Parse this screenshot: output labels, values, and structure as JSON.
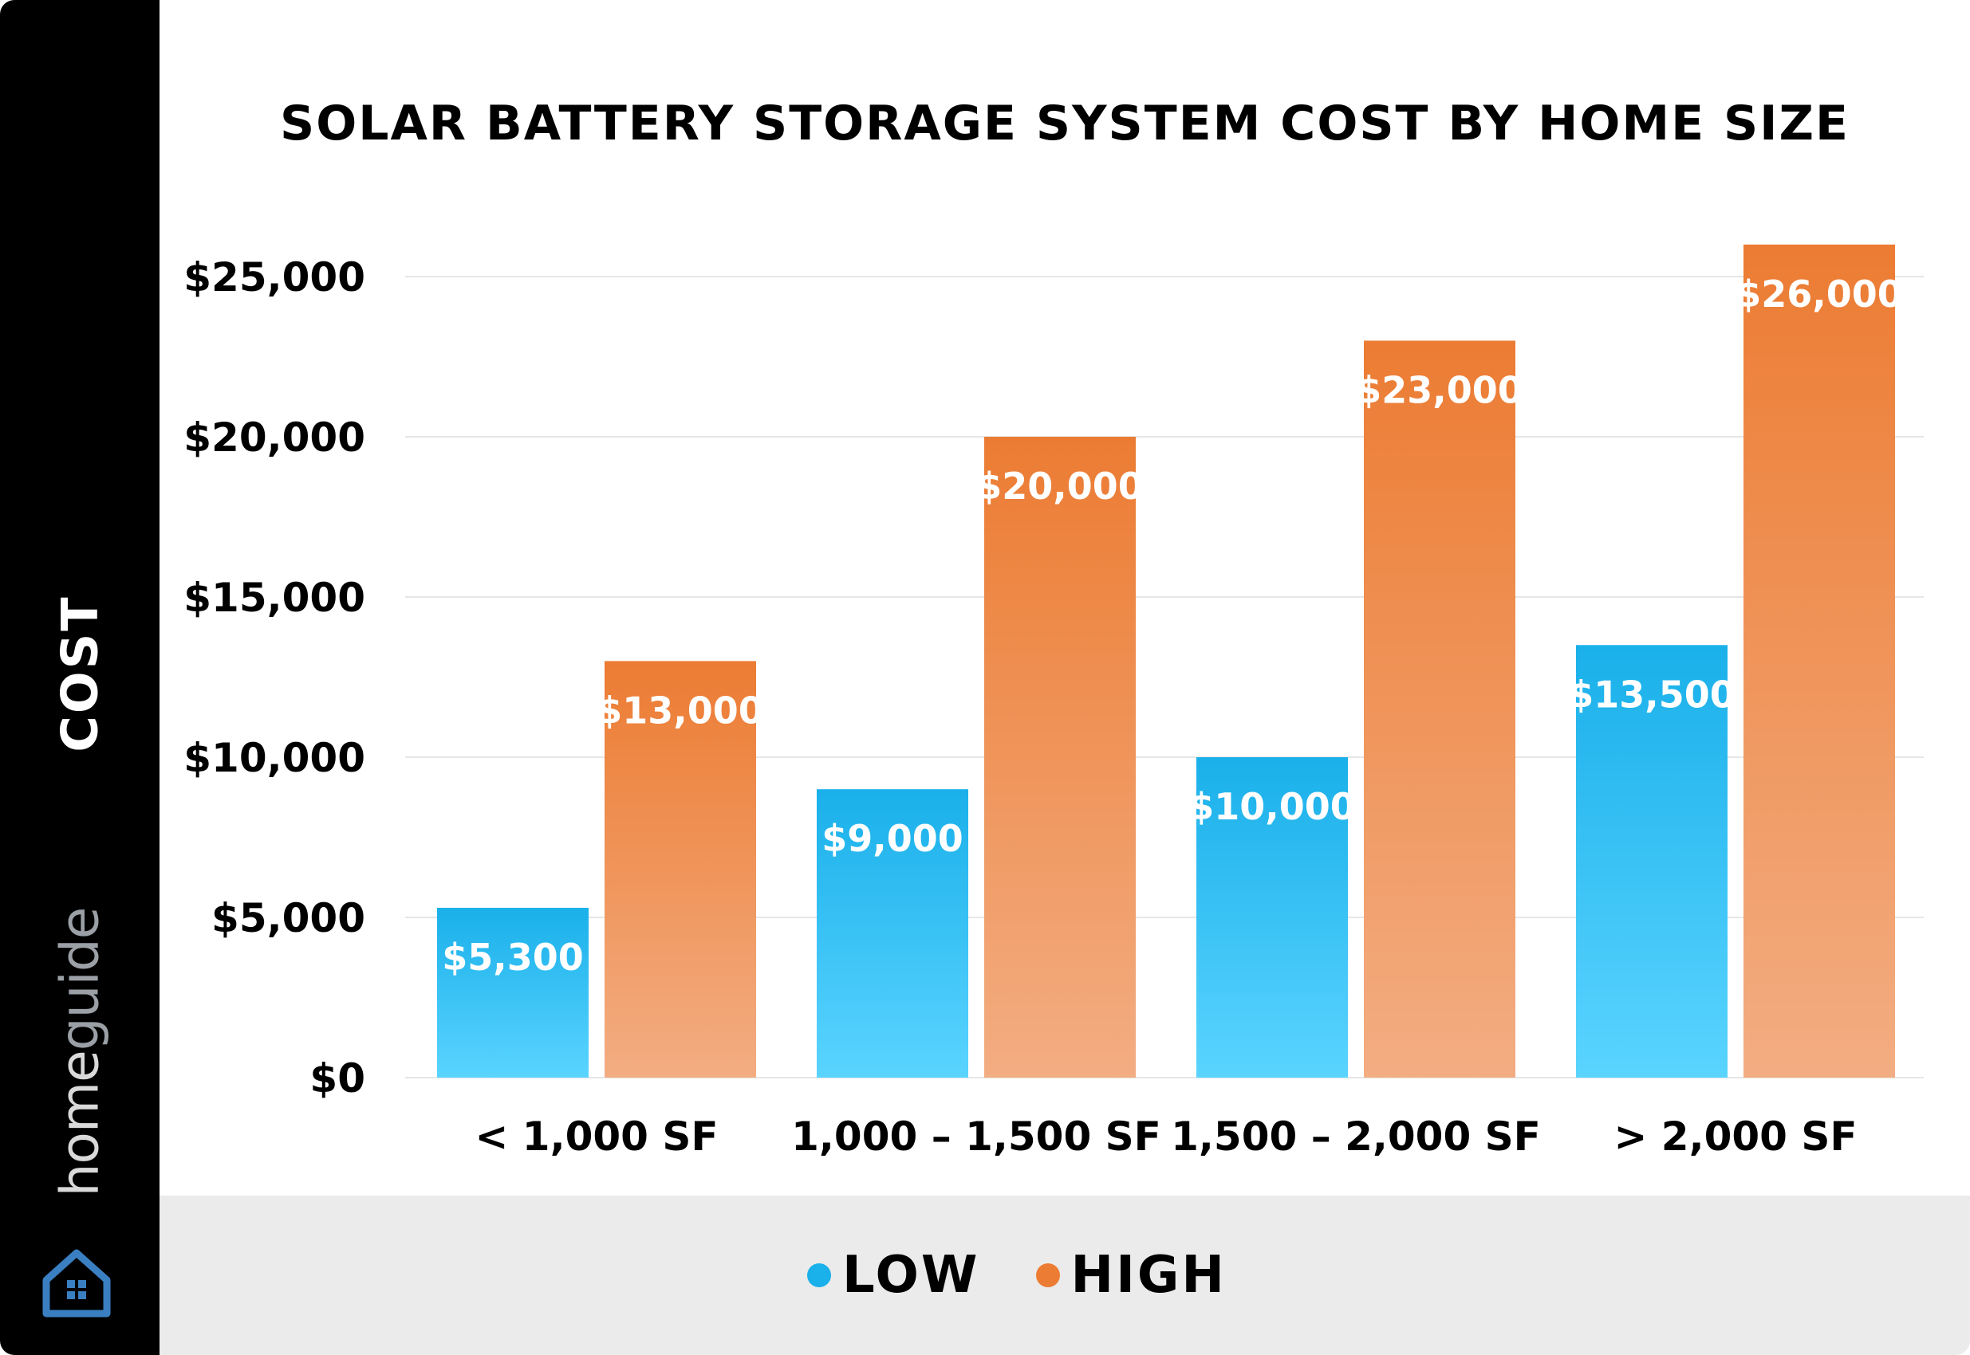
{
  "sidebar": {
    "axis_label": "COST",
    "brand": {
      "part1": "home",
      "part2": "guide",
      "logo_icon": "house-grid-icon"
    }
  },
  "colors": {
    "low_top": "#1ab0ea",
    "low_bottom": "#5ad4ff",
    "high_top": "#ec7c33",
    "high_bottom": "#f3ad82",
    "grid": "#e6e6e6",
    "sidebar": "#000000",
    "legend_band": "#ebebeb"
  },
  "chart_data": {
    "type": "bar",
    "title": "SOLAR BATTERY STORAGE SYSTEM COST BY HOME SIZE",
    "ylabel": "COST",
    "xlabel": "",
    "categories": [
      "< 1,000 SF",
      "1,000 – 1,500 SF",
      "1,500 – 2,000 SF",
      "> 2,000 SF"
    ],
    "series": [
      {
        "name": "LOW",
        "values": [
          5300,
          9000,
          10000,
          13500
        ],
        "labels": [
          "$5,300",
          "$9,000",
          "$10,000",
          "$13,500"
        ]
      },
      {
        "name": "HIGH",
        "values": [
          13000,
          20000,
          23000,
          26000
        ],
        "labels": [
          "$13,000",
          "$20,000",
          "$23,000",
          "$26,000"
        ]
      }
    ],
    "ylim": [
      0,
      26000
    ],
    "yticks": [
      0,
      5000,
      10000,
      15000,
      20000,
      25000
    ],
    "ytick_labels": [
      "$0",
      "$5,000",
      "$10,000",
      "$15,000",
      "$20,000",
      "$25,000"
    ],
    "grid": true,
    "legend_position": "bottom"
  }
}
